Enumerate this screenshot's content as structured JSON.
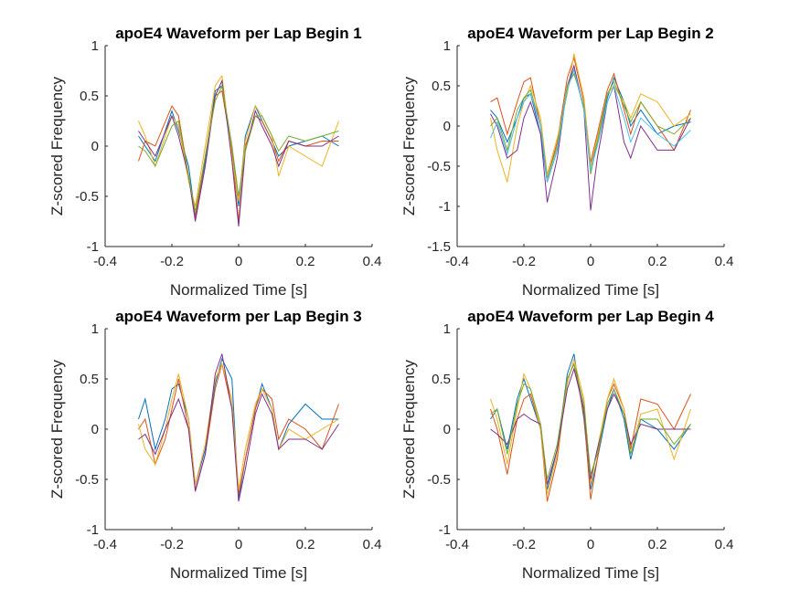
{
  "figure": {
    "background": "#ffffff"
  },
  "series_colors": [
    "#0072bd",
    "#d95319",
    "#edb120",
    "#7e2f8e",
    "#77ac30",
    "#4dbeee",
    "#a2142f"
  ],
  "chart_data": [
    {
      "type": "line",
      "title": "apoE4 Waveform per Lap Begin 1",
      "xlabel": "Normalized Time [s]",
      "ylabel": "Z-scored Frequency",
      "xlim": [
        -0.4,
        0.4
      ],
      "ylim": [
        -1,
        1
      ],
      "xticks": [
        "-0.4",
        "-0.2",
        "0",
        "0.2",
        "0.4"
      ],
      "yticks": [
        "-1",
        "-0.5",
        "0",
        "0.5",
        "1"
      ],
      "x": [
        -0.3,
        -0.28,
        -0.25,
        -0.2,
        -0.18,
        -0.15,
        -0.13,
        -0.1,
        -0.07,
        -0.05,
        -0.02,
        0,
        0.02,
        0.05,
        0.07,
        0.1,
        0.12,
        0.15,
        0.2,
        0.25,
        0.3
      ],
      "series": [
        {
          "values": [
            0.1,
            0.0,
            -0.15,
            0.35,
            0.15,
            -0.2,
            -0.7,
            -0.15,
            0.55,
            0.6,
            0.0,
            -0.6,
            0.1,
            0.4,
            0.25,
            0.05,
            -0.1,
            0.0,
            0.05,
            0.1,
            0.0
          ]
        },
        {
          "values": [
            -0.15,
            0.05,
            0.0,
            0.4,
            0.3,
            -0.3,
            -0.72,
            -0.1,
            0.5,
            0.55,
            -0.05,
            -0.75,
            0.0,
            0.3,
            0.25,
            0.05,
            -0.15,
            0.05,
            0.0,
            0.05,
            0.05
          ]
        },
        {
          "values": [
            0.25,
            0.1,
            -0.2,
            0.3,
            0.2,
            -0.35,
            -0.6,
            0.0,
            0.6,
            0.7,
            -0.1,
            -0.55,
            0.05,
            0.4,
            0.3,
            0.1,
            -0.3,
            0.0,
            -0.1,
            -0.2,
            0.25
          ]
        },
        {
          "values": [
            0.15,
            0.05,
            -0.1,
            0.3,
            0.1,
            -0.3,
            -0.75,
            -0.2,
            0.5,
            0.65,
            -0.15,
            -0.8,
            -0.05,
            0.35,
            0.2,
            0.0,
            -0.2,
            0.05,
            0.0,
            0.0,
            0.1
          ]
        },
        {
          "values": [
            0.0,
            -0.05,
            -0.2,
            0.2,
            0.25,
            -0.3,
            -0.65,
            -0.1,
            0.45,
            0.6,
            0.0,
            -0.5,
            -0.05,
            0.3,
            0.3,
            0.1,
            -0.05,
            0.1,
            0.05,
            0.1,
            0.15
          ]
        }
      ]
    },
    {
      "type": "line",
      "title": "apoE4 Waveform per Lap Begin 2",
      "xlabel": "Normalized Time [s]",
      "ylabel": "Z-scored Frequency",
      "xlim": [
        -0.4,
        0.4
      ],
      "ylim": [
        -1.5,
        1
      ],
      "xticks": [
        "-0.4",
        "-0.2",
        "0",
        "0.2",
        "0.4"
      ],
      "yticks": [
        "-1.5",
        "-1",
        "-0.5",
        "0",
        "0.5",
        "1"
      ],
      "x": [
        -0.3,
        -0.28,
        -0.25,
        -0.22,
        -0.2,
        -0.18,
        -0.15,
        -0.13,
        -0.1,
        -0.07,
        -0.05,
        -0.02,
        0,
        0.02,
        0.05,
        0.07,
        0.1,
        0.12,
        0.15,
        0.2,
        0.25,
        0.3
      ],
      "series": [
        {
          "values": [
            0.2,
            0.1,
            -0.2,
            0.1,
            0.35,
            0.4,
            -0.1,
            -0.7,
            -0.3,
            0.5,
            0.7,
            0.2,
            -0.5,
            -0.2,
            0.35,
            0.6,
            0.3,
            0.0,
            0.2,
            -0.1,
            0.0,
            0.05
          ]
        },
        {
          "values": [
            0.3,
            0.35,
            -0.1,
            0.3,
            0.55,
            0.6,
            0.0,
            -0.65,
            -0.2,
            0.6,
            0.85,
            0.3,
            -0.45,
            -0.1,
            0.45,
            0.65,
            0.2,
            -0.1,
            0.3,
            0.0,
            -0.3,
            0.2
          ]
        },
        {
          "values": [
            0.1,
            -0.3,
            -0.7,
            0.0,
            0.3,
            0.5,
            0.1,
            -0.6,
            -0.15,
            0.4,
            0.9,
            0.35,
            -0.5,
            -0.15,
            0.4,
            0.5,
            0.3,
            0.1,
            0.4,
            0.3,
            0.0,
            0.15
          ]
        },
        {
          "values": [
            0.15,
            0.0,
            -0.4,
            -0.3,
            0.1,
            0.3,
            -0.1,
            -0.95,
            -0.4,
            0.5,
            0.75,
            0.2,
            -1.05,
            -0.4,
            0.3,
            0.5,
            -0.2,
            -0.4,
            0.0,
            -0.3,
            -0.3,
            0.1
          ]
        },
        {
          "values": [
            0.0,
            0.1,
            -0.3,
            0.2,
            0.35,
            0.45,
            0.0,
            -0.65,
            -0.25,
            0.5,
            0.65,
            0.25,
            -0.6,
            -0.2,
            0.4,
            0.55,
            0.25,
            0.05,
            0.3,
            0.0,
            -0.1,
            0.1
          ]
        },
        {
          "values": [
            -0.15,
            0.05,
            -0.35,
            0.1,
            0.3,
            0.4,
            0.0,
            -0.7,
            -0.3,
            0.45,
            0.7,
            0.2,
            -0.55,
            -0.25,
            0.3,
            0.5,
            0.1,
            -0.2,
            0.1,
            -0.1,
            -0.25,
            -0.05
          ]
        }
      ]
    },
    {
      "type": "line",
      "title": "apoE4 Waveform per Lap Begin 3",
      "xlabel": "Normalized Time [s]",
      "ylabel": "Z-scored Frequency",
      "xlim": [
        -0.4,
        0.4
      ],
      "ylim": [
        -1,
        1
      ],
      "xticks": [
        "-0.4",
        "-0.2",
        "0",
        "0.2",
        "0.4"
      ],
      "yticks": [
        "-1",
        "-0.5",
        "0",
        "0.5",
        "1"
      ],
      "x": [
        -0.3,
        -0.28,
        -0.25,
        -0.22,
        -0.2,
        -0.18,
        -0.15,
        -0.13,
        -0.1,
        -0.07,
        -0.05,
        -0.02,
        0,
        0.02,
        0.05,
        0.07,
        0.1,
        0.12,
        0.15,
        0.2,
        0.25,
        0.3
      ],
      "series": [
        {
          "values": [
            0.1,
            0.3,
            -0.2,
            0.1,
            0.4,
            0.45,
            0.1,
            -0.55,
            -0.2,
            0.45,
            0.7,
            0.5,
            -0.7,
            -0.3,
            0.2,
            0.45,
            0.2,
            -0.2,
            0.05,
            0.25,
            0.1,
            0.1
          ]
        },
        {
          "values": [
            0.0,
            0.1,
            -0.35,
            -0.1,
            0.2,
            0.5,
            0.0,
            -0.6,
            -0.25,
            0.4,
            0.65,
            0.2,
            -0.65,
            -0.3,
            0.2,
            0.4,
            0.3,
            -0.1,
            0.1,
            0.0,
            -0.2,
            0.25
          ]
        },
        {
          "values": [
            0.05,
            -0.2,
            -0.35,
            0.0,
            0.3,
            0.55,
            0.1,
            -0.55,
            -0.15,
            0.5,
            0.65,
            0.3,
            -0.6,
            -0.2,
            0.25,
            0.4,
            0.2,
            -0.2,
            0.0,
            -0.1,
            0.0,
            0.1
          ]
        },
        {
          "values": [
            -0.1,
            -0.05,
            -0.25,
            0.0,
            0.15,
            0.3,
            0.0,
            -0.62,
            -0.25,
            0.55,
            0.75,
            0.2,
            -0.72,
            -0.4,
            0.15,
            0.35,
            0.15,
            -0.2,
            -0.1,
            -0.1,
            -0.2,
            0.05
          ]
        }
      ]
    },
    {
      "type": "line",
      "title": "apoE4 Waveform per Lap Begin 4",
      "xlabel": "Normalized Time [s]",
      "ylabel": "Z-scored Frequency",
      "xlim": [
        -0.4,
        0.4
      ],
      "ylim": [
        -1,
        1
      ],
      "xticks": [
        "-0.4",
        "-0.2",
        "0",
        "0.2",
        "0.4"
      ],
      "yticks": [
        "-1",
        "-0.5",
        "0",
        "0.5",
        "1"
      ],
      "x": [
        -0.3,
        -0.28,
        -0.25,
        -0.22,
        -0.2,
        -0.18,
        -0.15,
        -0.13,
        -0.1,
        -0.07,
        -0.05,
        -0.02,
        0,
        0.02,
        0.05,
        0.07,
        0.1,
        0.12,
        0.15,
        0.2,
        0.25,
        0.3
      ],
      "series": [
        {
          "values": [
            0.1,
            0.2,
            -0.2,
            0.3,
            0.5,
            0.3,
            0.0,
            -0.6,
            -0.2,
            0.55,
            0.75,
            0.1,
            -0.6,
            -0.3,
            0.2,
            0.4,
            0.1,
            -0.3,
            0.1,
            0.0,
            -0.2,
            0.05
          ]
        },
        {
          "values": [
            0.2,
            0.0,
            -0.45,
            0.1,
            0.3,
            0.35,
            0.0,
            -0.72,
            -0.3,
            0.5,
            0.65,
            0.15,
            -0.7,
            -0.3,
            0.3,
            0.45,
            0.2,
            -0.2,
            0.3,
            0.25,
            0.0,
            0.35
          ]
        },
        {
          "values": [
            0.3,
            0.1,
            -0.35,
            0.2,
            0.55,
            0.4,
            0.0,
            -0.65,
            -0.25,
            0.45,
            0.7,
            0.3,
            -0.55,
            -0.2,
            0.3,
            0.5,
            0.2,
            -0.25,
            0.15,
            0.2,
            -0.3,
            0.2
          ]
        },
        {
          "values": [
            0.0,
            -0.05,
            -0.15,
            0.1,
            0.15,
            0.1,
            0.05,
            -0.55,
            -0.2,
            0.4,
            0.6,
            0.2,
            -0.5,
            -0.2,
            0.2,
            0.35,
            0.15,
            -0.15,
            0.05,
            0.0,
            0.0,
            0.0
          ]
        },
        {
          "values": [
            0.15,
            0.2,
            -0.25,
            0.25,
            0.45,
            0.4,
            0.05,
            -0.5,
            -0.15,
            0.5,
            0.65,
            0.25,
            -0.45,
            -0.25,
            0.25,
            0.4,
            0.15,
            -0.25,
            0.1,
            0.1,
            -0.15,
            0.05
          ]
        }
      ]
    }
  ]
}
